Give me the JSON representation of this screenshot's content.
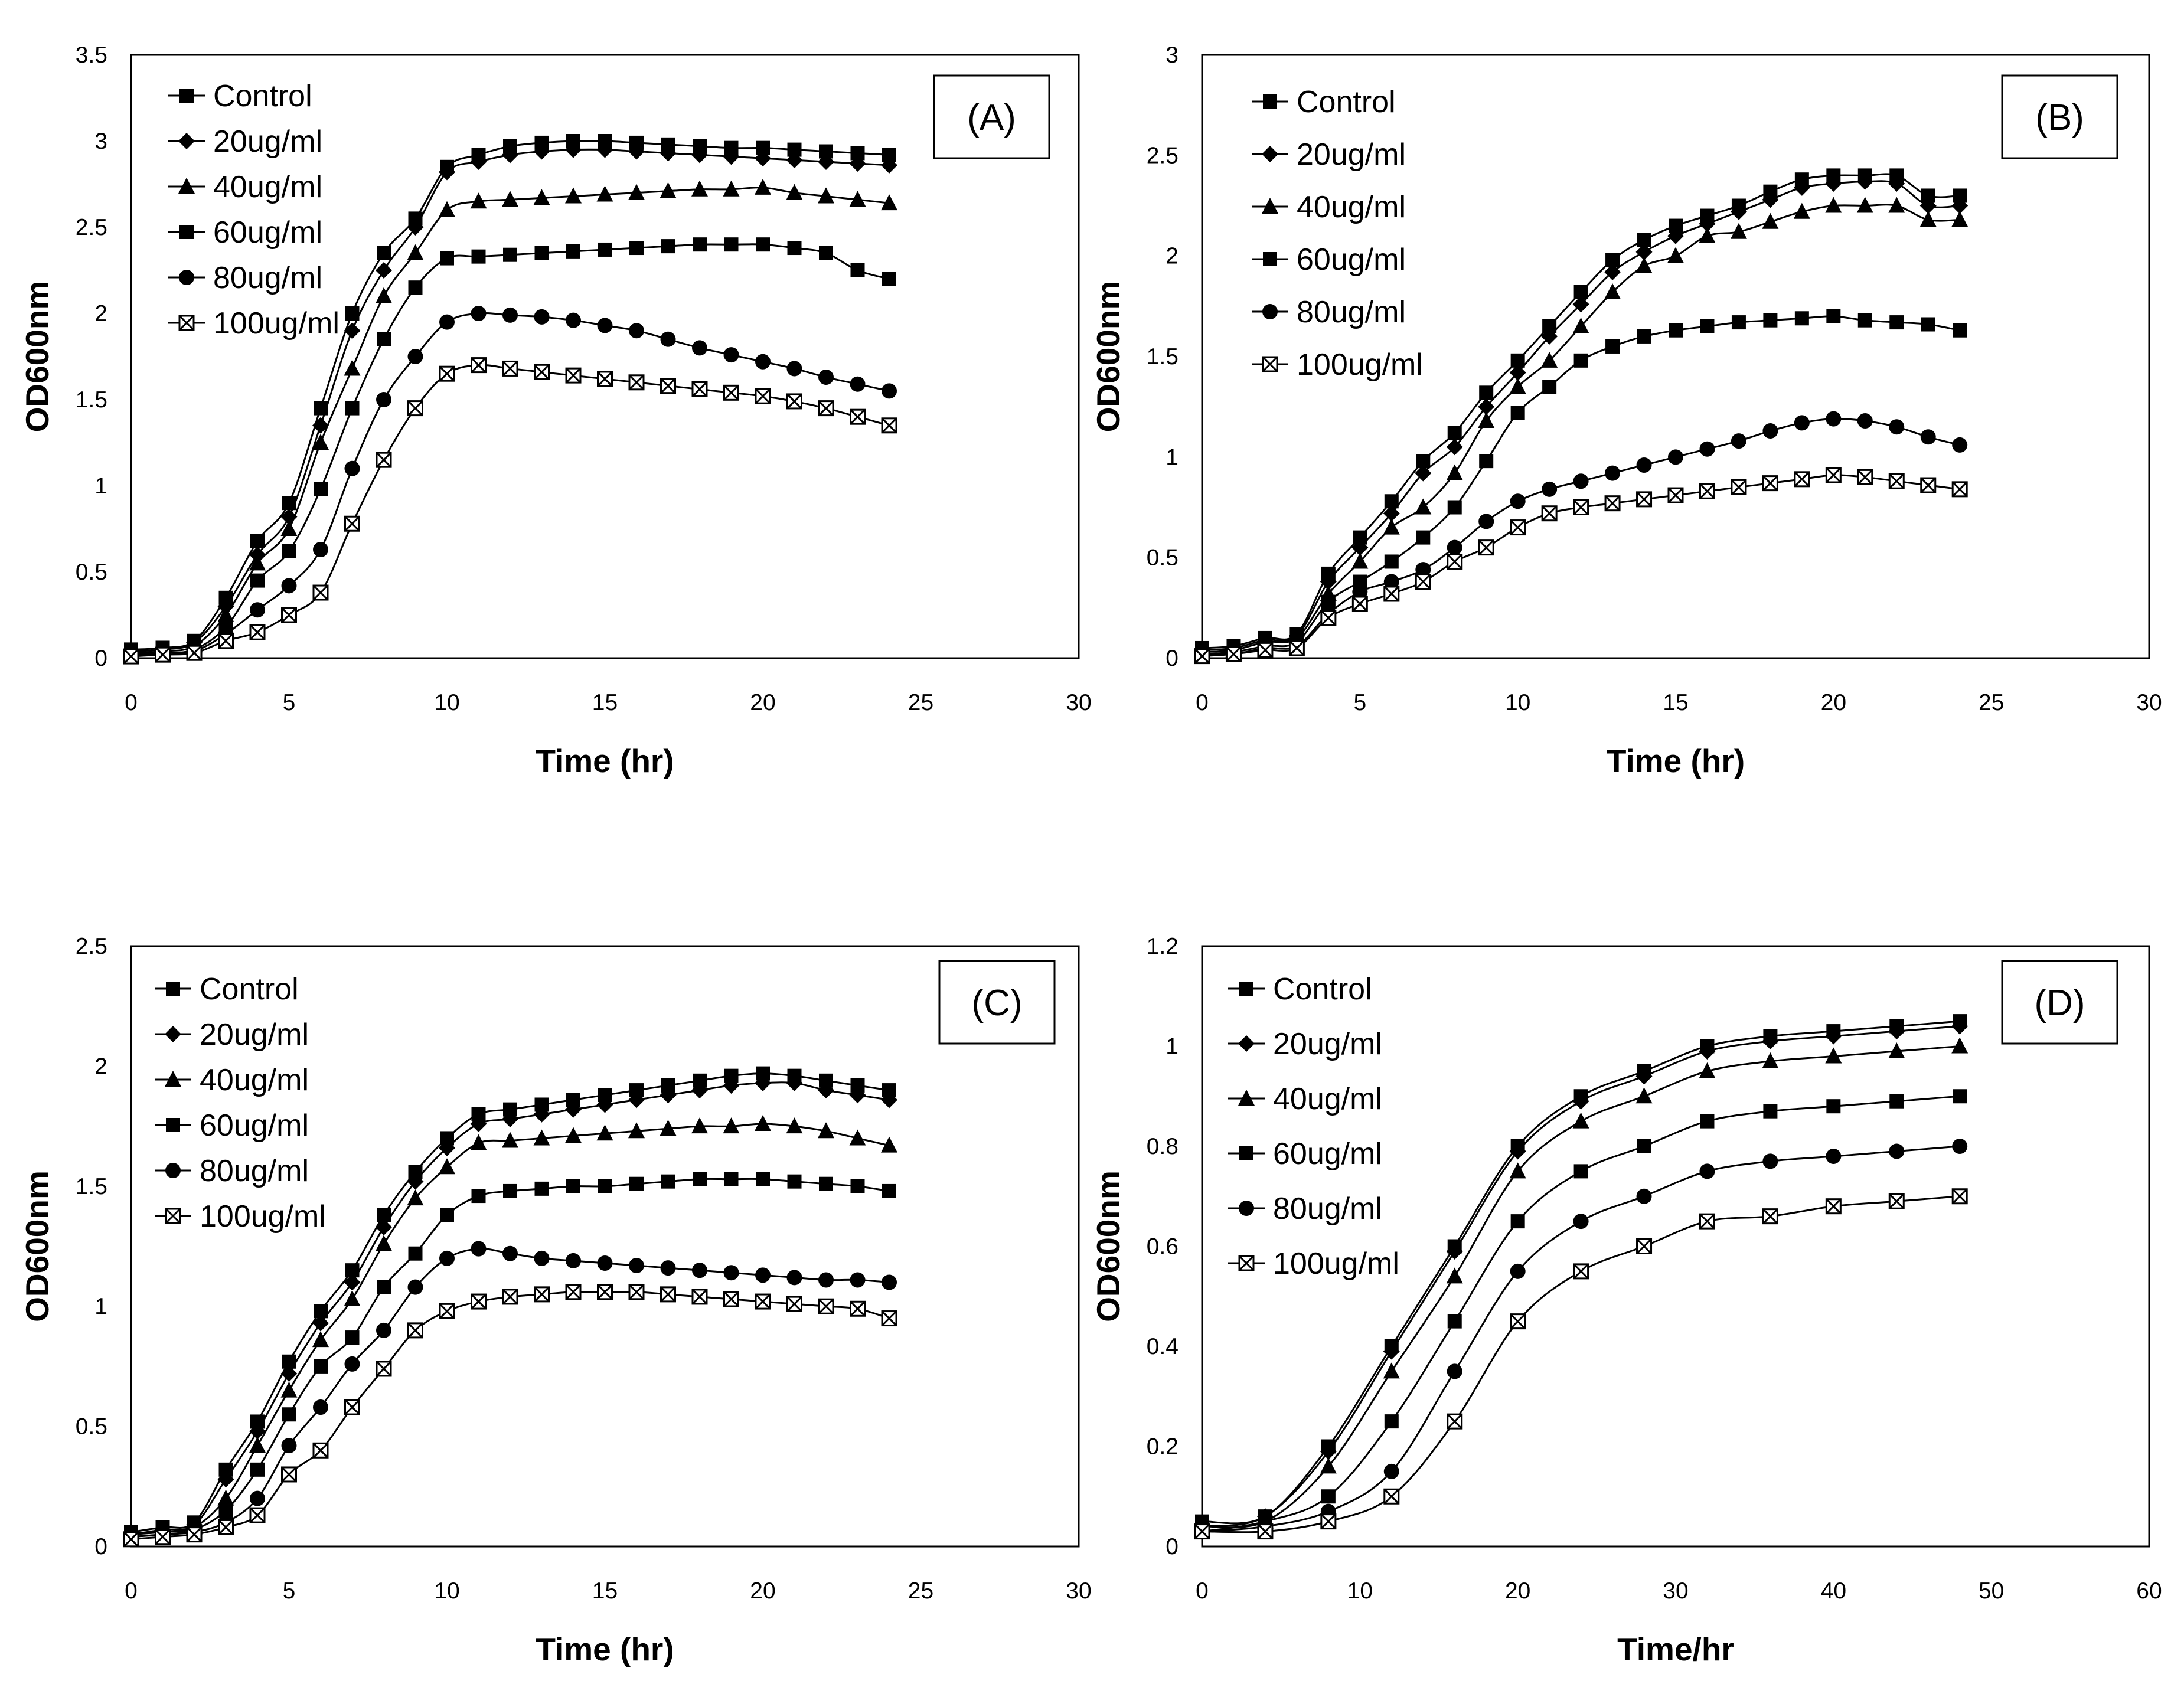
{
  "chart_data": [
    {
      "type": "line",
      "panel_label": "(A)",
      "xlabel": "Time (hr)",
      "ylabel": "OD600nm",
      "xlim": [
        0,
        30
      ],
      "ylim": [
        0,
        3.5
      ],
      "x_ticks": [
        "0",
        "5",
        "10",
        "15",
        "20",
        "25",
        "30"
      ],
      "y_ticks": [
        "0",
        "0.5",
        "1",
        "1.5",
        "2",
        "2.5",
        "3",
        "3.5"
      ],
      "legend_position": "top-left",
      "x": [
        0,
        1,
        2,
        3,
        4,
        5,
        6,
        7,
        8,
        9,
        10,
        11,
        12,
        13,
        14,
        15,
        16,
        17,
        18,
        19,
        20,
        21,
        22,
        23,
        24
      ],
      "series": [
        {
          "name": "Control",
          "marker": "square",
          "values": [
            0.05,
            0.06,
            0.1,
            0.35,
            0.68,
            0.9,
            1.45,
            2.0,
            2.35,
            2.55,
            2.85,
            2.92,
            2.97,
            2.99,
            3.0,
            3.0,
            2.99,
            2.98,
            2.97,
            2.96,
            2.96,
            2.95,
            2.94,
            2.93,
            2.92
          ]
        },
        {
          "name": "20ug/ml",
          "marker": "diamond",
          "values": [
            0.04,
            0.05,
            0.09,
            0.3,
            0.6,
            0.82,
            1.35,
            1.9,
            2.25,
            2.5,
            2.82,
            2.88,
            2.92,
            2.94,
            2.95,
            2.95,
            2.94,
            2.93,
            2.92,
            2.91,
            2.9,
            2.89,
            2.88,
            2.87,
            2.86
          ]
        },
        {
          "name": "40ug/ml",
          "marker": "triangle",
          "values": [
            0.03,
            0.04,
            0.07,
            0.25,
            0.55,
            0.75,
            1.25,
            1.68,
            2.1,
            2.35,
            2.6,
            2.65,
            2.66,
            2.67,
            2.68,
            2.69,
            2.7,
            2.71,
            2.72,
            2.72,
            2.73,
            2.7,
            2.68,
            2.66,
            2.64
          ]
        },
        {
          "name": "60ug/ml",
          "marker": "square",
          "values": [
            0.02,
            0.03,
            0.05,
            0.18,
            0.45,
            0.62,
            0.98,
            1.45,
            1.85,
            2.15,
            2.32,
            2.33,
            2.34,
            2.35,
            2.36,
            2.37,
            2.38,
            2.39,
            2.4,
            2.4,
            2.4,
            2.38,
            2.35,
            2.25,
            2.2
          ]
        },
        {
          "name": "80ug/ml",
          "marker": "circle",
          "values": [
            0.02,
            0.02,
            0.04,
            0.14,
            0.28,
            0.42,
            0.63,
            1.1,
            1.5,
            1.75,
            1.95,
            2.0,
            1.99,
            1.98,
            1.96,
            1.93,
            1.9,
            1.85,
            1.8,
            1.76,
            1.72,
            1.68,
            1.63,
            1.59,
            1.55
          ]
        },
        {
          "name": "100ug/ml",
          "marker": "xsquare",
          "values": [
            0.01,
            0.02,
            0.03,
            0.1,
            0.15,
            0.25,
            0.38,
            0.78,
            1.15,
            1.45,
            1.65,
            1.7,
            1.68,
            1.66,
            1.64,
            1.62,
            1.6,
            1.58,
            1.56,
            1.54,
            1.52,
            1.49,
            1.45,
            1.4,
            1.35
          ]
        }
      ]
    },
    {
      "type": "line",
      "panel_label": "(B)",
      "xlabel": "Time (hr)",
      "ylabel": "OD600nm",
      "xlim": [
        0,
        30
      ],
      "ylim": [
        0,
        3
      ],
      "x_ticks": [
        "0",
        "5",
        "10",
        "15",
        "20",
        "25",
        "30"
      ],
      "y_ticks": [
        "0",
        "0.5",
        "1",
        "1.5",
        "2",
        "2.5",
        "3"
      ],
      "legend_position": "top-left",
      "x": [
        0,
        1,
        2,
        3,
        4,
        5,
        6,
        7,
        8,
        9,
        10,
        11,
        12,
        13,
        14,
        15,
        16,
        17,
        18,
        19,
        20,
        21,
        22,
        23,
        24
      ],
      "series": [
        {
          "name": "Control",
          "marker": "square",
          "values": [
            0.05,
            0.06,
            0.1,
            0.12,
            0.42,
            0.6,
            0.78,
            0.98,
            1.12,
            1.32,
            1.48,
            1.65,
            1.82,
            1.98,
            2.08,
            2.15,
            2.2,
            2.25,
            2.32,
            2.38,
            2.4,
            2.4,
            2.4,
            2.3,
            2.3
          ]
        },
        {
          "name": "20ug/ml",
          "marker": "diamond",
          "values": [
            0.04,
            0.05,
            0.09,
            0.11,
            0.38,
            0.55,
            0.72,
            0.92,
            1.05,
            1.25,
            1.42,
            1.6,
            1.76,
            1.92,
            2.02,
            2.1,
            2.16,
            2.22,
            2.28,
            2.34,
            2.36,
            2.37,
            2.36,
            2.25,
            2.25
          ]
        },
        {
          "name": "40ug/ml",
          "marker": "triangle",
          "values": [
            0.03,
            0.04,
            0.08,
            0.1,
            0.32,
            0.48,
            0.65,
            0.75,
            0.92,
            1.18,
            1.35,
            1.48,
            1.65,
            1.82,
            1.95,
            2.0,
            2.1,
            2.12,
            2.17,
            2.22,
            2.25,
            2.25,
            2.25,
            2.18,
            2.18
          ]
        },
        {
          "name": "60ug/ml",
          "marker": "square",
          "values": [
            0.02,
            0.03,
            0.06,
            0.08,
            0.28,
            0.38,
            0.48,
            0.6,
            0.75,
            0.98,
            1.22,
            1.35,
            1.48,
            1.55,
            1.6,
            1.63,
            1.65,
            1.67,
            1.68,
            1.69,
            1.7,
            1.68,
            1.67,
            1.66,
            1.63
          ]
        },
        {
          "name": "80ug/ml",
          "marker": "circle",
          "values": [
            0.02,
            0.02,
            0.05,
            0.06,
            0.22,
            0.33,
            0.38,
            0.44,
            0.55,
            0.68,
            0.78,
            0.84,
            0.88,
            0.92,
            0.96,
            1.0,
            1.04,
            1.08,
            1.13,
            1.17,
            1.19,
            1.18,
            1.15,
            1.1,
            1.06
          ]
        },
        {
          "name": "100ug/ml",
          "marker": "xsquare",
          "values": [
            0.01,
            0.02,
            0.04,
            0.05,
            0.2,
            0.27,
            0.32,
            0.38,
            0.48,
            0.55,
            0.65,
            0.72,
            0.75,
            0.77,
            0.79,
            0.81,
            0.83,
            0.85,
            0.87,
            0.89,
            0.91,
            0.9,
            0.88,
            0.86,
            0.84
          ]
        }
      ]
    },
    {
      "type": "line",
      "panel_label": "(C)",
      "xlabel": "Time (hr)",
      "ylabel": "OD600nm",
      "xlim": [
        0,
        30
      ],
      "ylim": [
        0,
        2.5
      ],
      "x_ticks": [
        "0",
        "5",
        "10",
        "15",
        "20",
        "25",
        "30"
      ],
      "y_ticks": [
        "0",
        "0.5",
        "1",
        "1.5",
        "2",
        "2.5"
      ],
      "legend_position": "top-left",
      "x": [
        0,
        1,
        2,
        3,
        4,
        5,
        6,
        7,
        8,
        9,
        10,
        11,
        12,
        13,
        14,
        15,
        16,
        17,
        18,
        19,
        20,
        21,
        22,
        23,
        24
      ],
      "series": [
        {
          "name": "Control",
          "marker": "square",
          "values": [
            0.06,
            0.08,
            0.1,
            0.32,
            0.52,
            0.77,
            0.98,
            1.15,
            1.38,
            1.56,
            1.7,
            1.8,
            1.82,
            1.84,
            1.86,
            1.88,
            1.9,
            1.92,
            1.94,
            1.96,
            1.97,
            1.96,
            1.94,
            1.92,
            1.9
          ]
        },
        {
          "name": "20ug/ml",
          "marker": "diamond",
          "values": [
            0.05,
            0.07,
            0.09,
            0.28,
            0.48,
            0.72,
            0.93,
            1.1,
            1.33,
            1.52,
            1.66,
            1.76,
            1.78,
            1.8,
            1.82,
            1.84,
            1.86,
            1.88,
            1.9,
            1.92,
            1.93,
            1.93,
            1.9,
            1.88,
            1.86
          ]
        },
        {
          "name": "40ug/ml",
          "marker": "triangle",
          "values": [
            0.05,
            0.06,
            0.08,
            0.2,
            0.42,
            0.65,
            0.86,
            1.03,
            1.26,
            1.45,
            1.58,
            1.68,
            1.69,
            1.7,
            1.71,
            1.72,
            1.73,
            1.74,
            1.75,
            1.75,
            1.76,
            1.75,
            1.73,
            1.7,
            1.67
          ]
        },
        {
          "name": "60ug/ml",
          "marker": "square",
          "values": [
            0.04,
            0.05,
            0.07,
            0.15,
            0.32,
            0.55,
            0.75,
            0.87,
            1.08,
            1.22,
            1.38,
            1.46,
            1.48,
            1.49,
            1.5,
            1.5,
            1.51,
            1.52,
            1.53,
            1.53,
            1.53,
            1.52,
            1.51,
            1.5,
            1.48
          ]
        },
        {
          "name": "80ug/ml",
          "marker": "circle",
          "values": [
            0.04,
            0.05,
            0.06,
            0.1,
            0.2,
            0.42,
            0.58,
            0.76,
            0.9,
            1.08,
            1.2,
            1.24,
            1.22,
            1.2,
            1.19,
            1.18,
            1.17,
            1.16,
            1.15,
            1.14,
            1.13,
            1.12,
            1.11,
            1.11,
            1.1
          ]
        },
        {
          "name": "100ug/ml",
          "marker": "xsquare",
          "values": [
            0.03,
            0.04,
            0.05,
            0.08,
            0.13,
            0.3,
            0.4,
            0.58,
            0.74,
            0.9,
            0.98,
            1.02,
            1.04,
            1.05,
            1.06,
            1.06,
            1.06,
            1.05,
            1.04,
            1.03,
            1.02,
            1.01,
            1.0,
            0.99,
            0.95
          ]
        }
      ]
    },
    {
      "type": "line",
      "panel_label": "(D)",
      "xlabel": "Time/hr",
      "ylabel": "OD600nm",
      "xlim": [
        0,
        60
      ],
      "ylim": [
        0,
        1.2
      ],
      "x_ticks": [
        "0",
        "10",
        "20",
        "30",
        "40",
        "50",
        "60"
      ],
      "y_ticks": [
        "0",
        "0.2",
        "0.4",
        "0.6",
        "0.8",
        "1",
        "1.2"
      ],
      "legend_position": "top-left",
      "x": [
        0,
        4,
        8,
        12,
        16,
        20,
        24,
        28,
        32,
        36,
        40,
        44,
        48
      ],
      "series": [
        {
          "name": "Control",
          "marker": "square",
          "values": [
            0.05,
            0.06,
            0.2,
            0.4,
            0.6,
            0.8,
            0.9,
            0.95,
            1.0,
            1.02,
            1.03,
            1.04,
            1.05
          ]
        },
        {
          "name": "20ug/ml",
          "marker": "diamond",
          "values": [
            0.04,
            0.06,
            0.19,
            0.39,
            0.59,
            0.79,
            0.89,
            0.94,
            0.99,
            1.01,
            1.02,
            1.03,
            1.04
          ]
        },
        {
          "name": "40ug/ml",
          "marker": "triangle",
          "values": [
            0.04,
            0.05,
            0.16,
            0.35,
            0.54,
            0.75,
            0.85,
            0.9,
            0.95,
            0.97,
            0.98,
            0.99,
            1.0
          ]
        },
        {
          "name": "60ug/ml",
          "marker": "square",
          "values": [
            0.03,
            0.05,
            0.1,
            0.25,
            0.45,
            0.65,
            0.75,
            0.8,
            0.85,
            0.87,
            0.88,
            0.89,
            0.9
          ]
        },
        {
          "name": "80ug/ml",
          "marker": "circle",
          "values": [
            0.03,
            0.04,
            0.07,
            0.15,
            0.35,
            0.55,
            0.65,
            0.7,
            0.75,
            0.77,
            0.78,
            0.79,
            0.8
          ]
        },
        {
          "name": "100ug/ml",
          "marker": "xsquare",
          "values": [
            0.03,
            0.03,
            0.05,
            0.1,
            0.25,
            0.45,
            0.55,
            0.6,
            0.65,
            0.66,
            0.68,
            0.69,
            0.7
          ]
        }
      ]
    }
  ]
}
